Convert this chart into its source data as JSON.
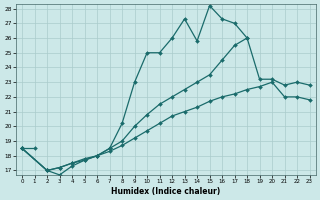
{
  "xlabel": "Humidex (Indice chaleur)",
  "xlim": [
    -0.5,
    23.5
  ],
  "ylim": [
    16.7,
    28.3
  ],
  "yticks": [
    17,
    18,
    19,
    20,
    21,
    22,
    23,
    24,
    25,
    26,
    27,
    28
  ],
  "xticks": [
    0,
    1,
    2,
    3,
    4,
    5,
    6,
    7,
    8,
    9,
    10,
    11,
    12,
    13,
    14,
    15,
    16,
    17,
    18,
    19,
    20,
    21,
    22,
    23
  ],
  "bg_color": "#cce8e8",
  "grid_color": "#aacccc",
  "line_color": "#1a6b6b",
  "series": [
    {
      "x": [
        0,
        1
      ],
      "y": [
        18.5,
        18.5
      ]
    },
    {
      "x": [
        0,
        2,
        3,
        4,
        5,
        6,
        7,
        8,
        9,
        10,
        11,
        12,
        13,
        14,
        15,
        16,
        17,
        18
      ],
      "y": [
        18.5,
        17.0,
        16.7,
        17.3,
        17.7,
        18.0,
        18.5,
        20.2,
        23.0,
        25.0,
        25.0,
        26.0,
        27.3,
        25.8,
        28.2,
        27.3,
        27.0,
        26.0
      ]
    },
    {
      "x": [
        0,
        2,
        3,
        4,
        5,
        6,
        7,
        8,
        9,
        10,
        11,
        12,
        13,
        14,
        15,
        16,
        17,
        18,
        19,
        20,
        21,
        22,
        23
      ],
      "y": [
        18.5,
        17.0,
        17.2,
        17.5,
        17.8,
        18.0,
        18.5,
        19.0,
        20.0,
        20.8,
        21.5,
        22.0,
        22.5,
        23.0,
        23.5,
        24.5,
        25.5,
        26.0,
        23.2,
        23.2,
        22.8,
        23.0,
        22.8
      ]
    },
    {
      "x": [
        0,
        2,
        3,
        4,
        5,
        6,
        7,
        8,
        9,
        10,
        11,
        12,
        13,
        14,
        15,
        16,
        17,
        18,
        19,
        20,
        21,
        22,
        23
      ],
      "y": [
        18.5,
        17.0,
        17.2,
        17.5,
        17.7,
        18.0,
        18.3,
        18.7,
        19.2,
        19.7,
        20.2,
        20.7,
        21.0,
        21.3,
        21.7,
        22.0,
        22.2,
        22.5,
        22.7,
        23.0,
        22.0,
        22.0,
        21.8
      ]
    }
  ]
}
